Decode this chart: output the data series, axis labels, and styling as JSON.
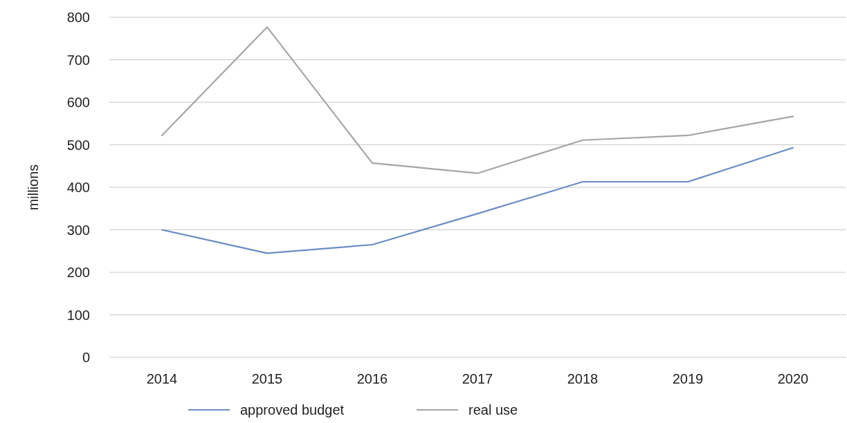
{
  "chart_data": {
    "type": "line",
    "ylabel": "millions",
    "categories": [
      "2014",
      "2015",
      "2016",
      "2017",
      "2018",
      "2019",
      "2020"
    ],
    "series": [
      {
        "name": "approved budget",
        "color": "#6a8cc4",
        "values": [
          300,
          245,
          265,
          338,
          413,
          413,
          493
        ]
      },
      {
        "name": "real use",
        "color": "#a5a5a5",
        "values": [
          522,
          777,
          457,
          433,
          511,
          522,
          567
        ]
      }
    ],
    "ylim": [
      0,
      800
    ],
    "yticks": [
      0,
      100,
      200,
      300,
      400,
      500,
      600,
      700,
      800
    ],
    "grid": "y",
    "legend": "bottom",
    "marker": "none",
    "line_style": "solid"
  }
}
